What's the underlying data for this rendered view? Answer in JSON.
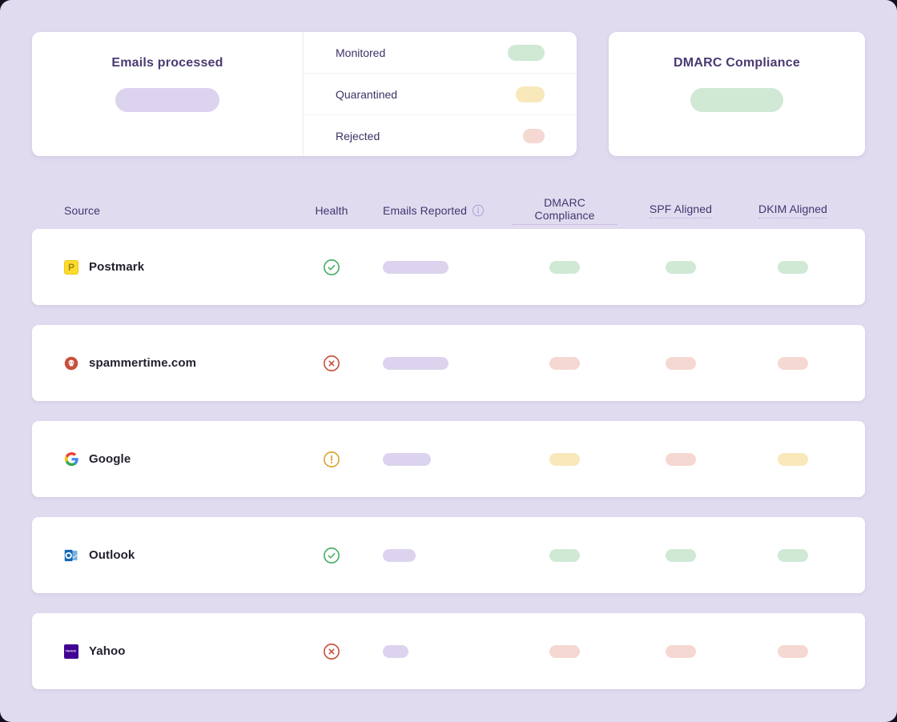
{
  "summary_cards": {
    "emails_processed": {
      "title": "Emails processed"
    },
    "legend": [
      {
        "label": "Monitored",
        "status": "green",
        "size": "lg"
      },
      {
        "label": "Quarantined",
        "status": "yellow",
        "size": "md"
      },
      {
        "label": "Rejected",
        "status": "red",
        "size": "sm"
      }
    ],
    "dmarc_compliance": {
      "title": "DMARC Compliance"
    }
  },
  "table": {
    "headers": {
      "source": "Source",
      "health": "Health",
      "emails_reported": "Emails Reported",
      "dmarc_compliance": "DMARC Compliance",
      "spf_aligned": "SPF Aligned",
      "dkim_aligned": "DKIM Aligned"
    },
    "rows": [
      {
        "source": "Postmark",
        "icon": "postmark",
        "health": "healthy",
        "emails_size": "lg",
        "dmarc": "green",
        "spf": "green",
        "dkim": "green"
      },
      {
        "source": "spammertime.com",
        "icon": "spammertime",
        "health": "critical",
        "emails_size": "lg",
        "dmarc": "red",
        "spf": "red",
        "dkim": "red"
      },
      {
        "source": "Google",
        "icon": "google",
        "health": "warning",
        "emails_size": "md",
        "dmarc": "yellow",
        "spf": "red",
        "dkim": "yellow"
      },
      {
        "source": "Outlook",
        "icon": "outlook",
        "health": "healthy",
        "emails_size": "sm",
        "dmarc": "green",
        "spf": "green",
        "dkim": "green"
      },
      {
        "source": "Yahoo",
        "icon": "yahoo",
        "health": "critical",
        "emails_size": "xs",
        "dmarc": "red",
        "spf": "red",
        "dkim": "red"
      }
    ]
  },
  "colors": {
    "background": "#e1dbf0",
    "card": "#ffffff",
    "pill_lavender": "#dcd4ee",
    "pill_green": "#cfe9d4",
    "pill_yellow": "#f8e8ba",
    "pill_red": "#f5d8d2",
    "icon_green": "#42ab5e",
    "icon_red": "#c64a38",
    "icon_amber": "#d9a32b",
    "icon_info": "#b3a3d8",
    "title_text": "#4a3a72",
    "source_text": "#22212f"
  }
}
